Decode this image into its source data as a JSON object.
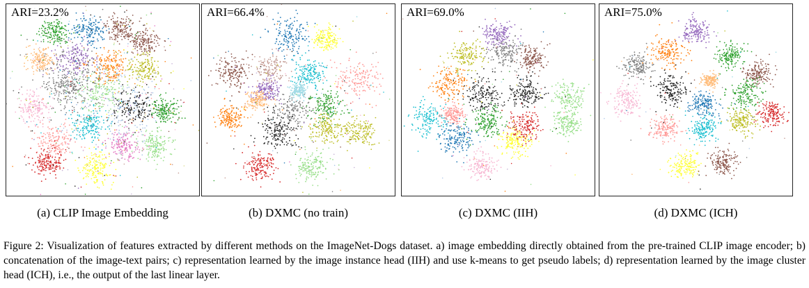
{
  "panels": [
    {
      "ari": "ARI=23.2%",
      "subcaption": "(a) CLIP Image Embedding"
    },
    {
      "ari": "ARI=66.4%",
      "subcaption": "(b) DXMC (no train)"
    },
    {
      "ari": "ARI=69.0%",
      "subcaption": "(c) DXMC (IIH)"
    },
    {
      "ari": "ARI=75.0%",
      "subcaption": "(d) DXMC (ICH)"
    }
  ],
  "caption": "Figure 2: Visualization of features extracted by different methods on the ImageNet-Dogs dataset. a) image embedding directly obtained from the pre-trained CLIP image encoder; b) concatenation of the image-text pairs; c) representation learned by the image instance head (IIH) and use k-means to get pseudo labels; d) representation learned by the image cluster head (ICH), i.e., the output of the last linear layer.",
  "cluster_colors": [
    "#1f77b4",
    "#ff7f0e",
    "#2ca02c",
    "#d62728",
    "#9467bd",
    "#8c564b",
    "#e377c2",
    "#7f7f7f",
    "#bcbd22",
    "#17becf",
    "#aec7e8",
    "#ffbb78",
    "#98df8a",
    "#ff9896",
    "#c5b0d5",
    "#c49c94",
    "#f7b6d2",
    "#222222",
    "#dbdb8d",
    "#9edae5",
    "#ffff33"
  ]
}
